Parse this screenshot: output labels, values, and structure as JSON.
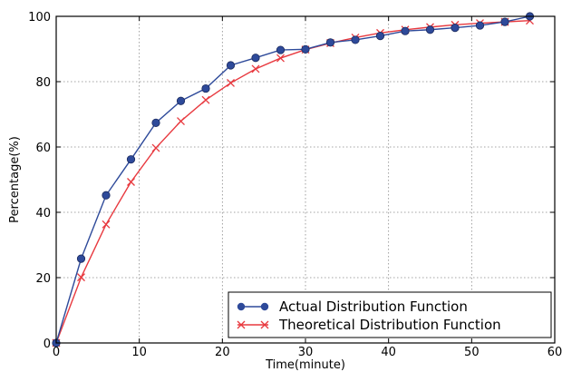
{
  "chart_data": {
    "type": "line",
    "title": "",
    "xlabel": "Time(minute)",
    "ylabel": "Percentage(%)",
    "xlim": [
      0,
      60
    ],
    "ylim": [
      0,
      100
    ],
    "xticks": [
      0,
      10,
      20,
      30,
      40,
      50,
      60
    ],
    "yticks": [
      0,
      20,
      40,
      60,
      80,
      100
    ],
    "grid": true,
    "legend_position": "bottom-right",
    "series": [
      {
        "name": "Actual Distribution Function",
        "color": "#2e4a9a",
        "marker": "circle",
        "x": [
          0,
          3,
          6,
          9,
          12,
          15,
          18,
          21,
          24,
          27,
          30,
          33,
          36,
          39,
          42,
          45,
          48,
          51,
          54,
          57
        ],
        "y": [
          0,
          25.8,
          45.2,
          56.2,
          67.4,
          74.1,
          77.9,
          85.0,
          87.3,
          89.7,
          89.9,
          92.0,
          92.8,
          94.0,
          95.5,
          95.9,
          96.5,
          97.2,
          98.3,
          100
        ]
      },
      {
        "name": "Theoretical Distribution Function",
        "color": "#e8393f",
        "marker": "x",
        "x": [
          0,
          3,
          6,
          9,
          12,
          15,
          18,
          21,
          24,
          27,
          30,
          33,
          36,
          39,
          42,
          45,
          48,
          51,
          54,
          57
        ],
        "y": [
          0,
          20.1,
          36.3,
          49.3,
          59.7,
          67.9,
          74.4,
          79.6,
          83.9,
          87.2,
          89.8,
          91.8,
          93.5,
          94.9,
          95.9,
          96.7,
          97.4,
          97.9,
          98.3,
          98.7
        ]
      }
    ]
  }
}
